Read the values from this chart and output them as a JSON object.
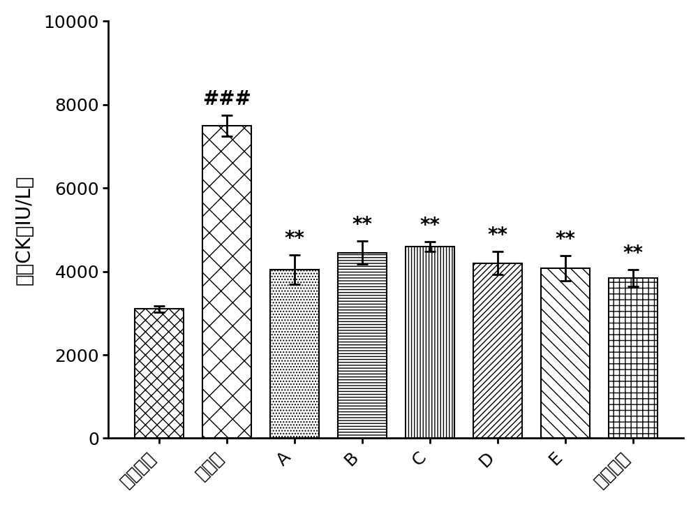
{
  "categories": [
    "假手术组",
    "模型组",
    "A",
    "B",
    "C",
    "D",
    "E",
    "曲美他嚇"
  ],
  "values": [
    3100,
    7500,
    4050,
    4450,
    4600,
    4200,
    4080,
    3850
  ],
  "errors": [
    80,
    250,
    350,
    280,
    120,
    280,
    300,
    200
  ],
  "annotations": [
    "",
    "###",
    "**",
    "**",
    "**",
    "**",
    "**",
    "**"
  ],
  "ylabel": "血清CK（IU/L）",
  "ylim": [
    0,
    10000
  ],
  "yticks": [
    0,
    2000,
    4000,
    6000,
    8000,
    10000
  ],
  "bar_width": 0.72,
  "bar_edgecolor": "black",
  "background_color": "white",
  "tick_fontsize": 18,
  "label_fontsize": 20,
  "annotation_fontsize": 20
}
